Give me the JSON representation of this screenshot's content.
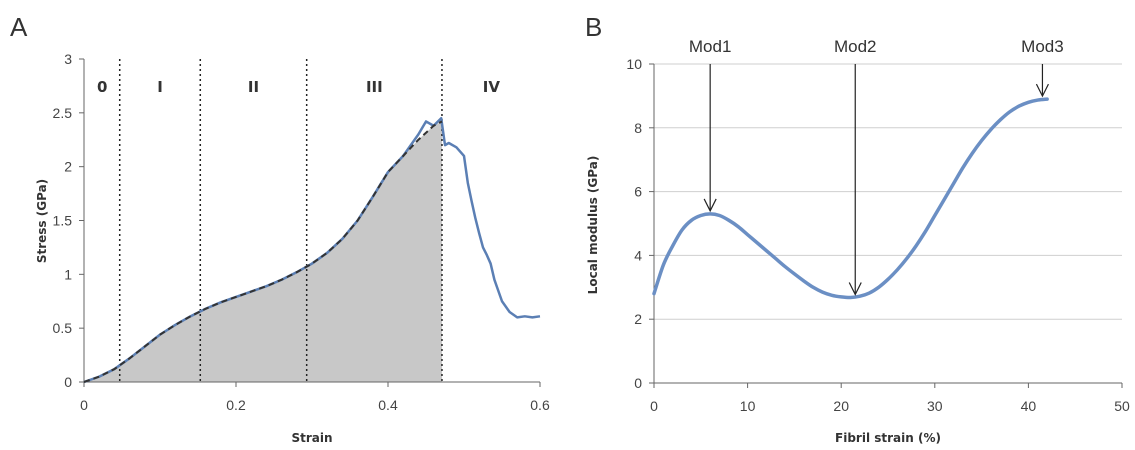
{
  "chart_data": [
    {
      "type": "area",
      "panel_label": "A",
      "xlabel": "Strain",
      "ylabel": "Stress (GPa)",
      "xlim": [
        0,
        0.6
      ],
      "ylim": [
        0,
        3
      ],
      "xticks": [
        "0",
        "0.2",
        "0.4",
        "0.6"
      ],
      "xtick_values": [
        0,
        0.2,
        0.4,
        0.6
      ],
      "yticks": [
        "0",
        "0.5",
        "1",
        "1.5",
        "2",
        "2.5",
        "3"
      ],
      "ytick_values": [
        0,
        0.5,
        1,
        1.5,
        2,
        2.5,
        3
      ],
      "grid": false,
      "region_dividers": [
        0.047,
        0.153,
        0.293,
        0.471
      ],
      "regions": [
        {
          "label": "0",
          "x": 0.024
        },
        {
          "label": "I",
          "x": 0.1
        },
        {
          "label": "II",
          "x": 0.223
        },
        {
          "label": "III",
          "x": 0.382
        },
        {
          "label": "IV",
          "x": 0.536
        }
      ],
      "series": [
        {
          "style": "solid",
          "color": "#5b7fb4",
          "x": [
            0,
            0.02,
            0.04,
            0.06,
            0.08,
            0.1,
            0.12,
            0.14,
            0.16,
            0.18,
            0.2,
            0.22,
            0.24,
            0.26,
            0.28,
            0.3,
            0.32,
            0.34,
            0.36,
            0.38,
            0.4,
            0.42,
            0.44,
            0.45,
            0.46,
            0.47,
            0.475,
            0.48,
            0.49,
            0.5,
            0.505,
            0.51,
            0.515,
            0.52,
            0.525,
            0.53,
            0.535,
            0.54,
            0.545,
            0.55,
            0.56,
            0.57,
            0.58,
            0.59,
            0.6
          ],
          "y": [
            0,
            0.05,
            0.12,
            0.22,
            0.33,
            0.44,
            0.53,
            0.61,
            0.68,
            0.74,
            0.79,
            0.84,
            0.89,
            0.95,
            1.02,
            1.1,
            1.2,
            1.33,
            1.5,
            1.72,
            1.95,
            2.1,
            2.3,
            2.42,
            2.38,
            2.45,
            2.2,
            2.22,
            2.18,
            2.1,
            1.85,
            1.68,
            1.52,
            1.38,
            1.25,
            1.18,
            1.1,
            0.95,
            0.85,
            0.75,
            0.65,
            0.6,
            0.61,
            0.6,
            0.61
          ]
        },
        {
          "style": "dashed",
          "color": "#333333",
          "fill": "#c8c8c8",
          "x": [
            0,
            0.02,
            0.04,
            0.06,
            0.08,
            0.1,
            0.12,
            0.14,
            0.16,
            0.18,
            0.2,
            0.22,
            0.24,
            0.26,
            0.28,
            0.3,
            0.32,
            0.34,
            0.36,
            0.38,
            0.4,
            0.42,
            0.44,
            0.46,
            0.471
          ],
          "y": [
            0,
            0.05,
            0.12,
            0.22,
            0.33,
            0.44,
            0.53,
            0.61,
            0.68,
            0.74,
            0.79,
            0.84,
            0.89,
            0.95,
            1.02,
            1.1,
            1.2,
            1.33,
            1.5,
            1.72,
            1.95,
            2.1,
            2.25,
            2.38,
            2.42
          ]
        }
      ]
    },
    {
      "type": "line",
      "panel_label": "B",
      "xlabel": "Fibril strain (%)",
      "ylabel": "Local modulus (GPa)",
      "xlim": [
        0,
        50
      ],
      "ylim": [
        0,
        10
      ],
      "xticks": [
        "0",
        "10",
        "20",
        "30",
        "40",
        "50"
      ],
      "xtick_values": [
        0,
        10,
        20,
        30,
        40,
        50
      ],
      "yticks": [
        "0",
        "2",
        "4",
        "6",
        "8",
        "10"
      ],
      "ytick_values": [
        0,
        2,
        4,
        6,
        8,
        10
      ],
      "grid": true,
      "series": [
        {
          "color": "#6b8fc4",
          "x": [
            0,
            1,
            2,
            3,
            4,
            5,
            6,
            7,
            8,
            9,
            10,
            11,
            12,
            13,
            14,
            15,
            16,
            17,
            18,
            19,
            20,
            21,
            22,
            23,
            24,
            25,
            26,
            27,
            28,
            29,
            30,
            31,
            32,
            33,
            34,
            35,
            36,
            37,
            38,
            39,
            40,
            41,
            42
          ],
          "y": [
            2.8,
            3.7,
            4.3,
            4.8,
            5.1,
            5.25,
            5.3,
            5.25,
            5.1,
            4.9,
            4.65,
            4.4,
            4.15,
            3.9,
            3.65,
            3.42,
            3.2,
            3.0,
            2.85,
            2.75,
            2.7,
            2.68,
            2.72,
            2.82,
            3.0,
            3.25,
            3.55,
            3.9,
            4.3,
            4.75,
            5.25,
            5.75,
            6.25,
            6.75,
            7.2,
            7.6,
            7.95,
            8.25,
            8.5,
            8.68,
            8.8,
            8.87,
            8.9
          ]
        }
      ],
      "annotations": [
        {
          "label": "Mod1",
          "x": 6,
          "y": 5.3
        },
        {
          "label": "Mod2",
          "x": 21.5,
          "y": 2.68
        },
        {
          "label": "Mod3",
          "x": 41.5,
          "y": 8.9
        }
      ]
    }
  ]
}
